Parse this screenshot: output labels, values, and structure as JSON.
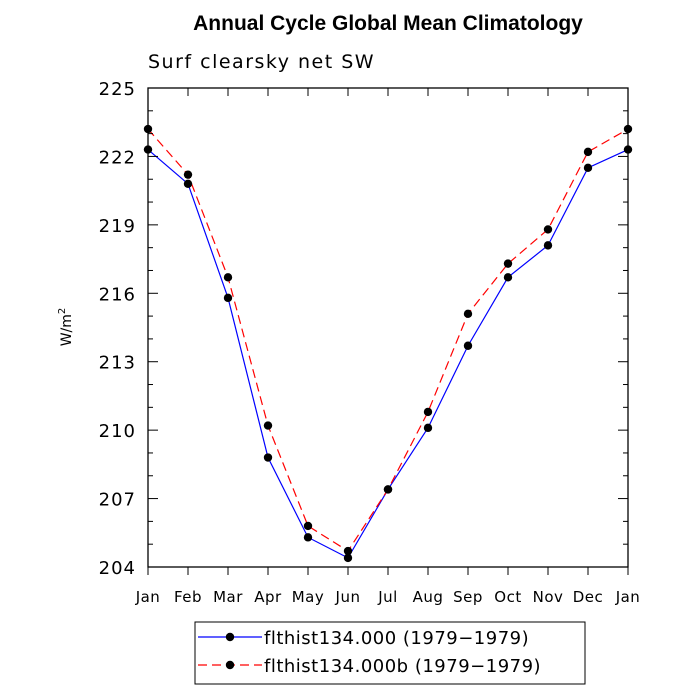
{
  "chart_data": {
    "type": "line",
    "title": "Annual Cycle Global Mean Climatology",
    "subtitle": "Surf clearsky net SW",
    "ylabel": "W/m",
    "ylabel_superscript": "2",
    "categories": [
      "Jan",
      "Feb",
      "Mar",
      "Apr",
      "May",
      "Jun",
      "Jul",
      "Aug",
      "Sep",
      "Oct",
      "Nov",
      "Dec",
      "Jan"
    ],
    "ylim": [
      204,
      225
    ],
    "yticks": [
      "204",
      "207",
      "210",
      "213",
      "216",
      "219",
      "222",
      "225"
    ],
    "series": [
      {
        "name": "flthist134.000 (1979−1979)",
        "color": "#0000ff",
        "dash": "solid",
        "values": [
          222.3,
          220.8,
          215.8,
          208.8,
          205.3,
          204.4,
          207.4,
          210.1,
          213.7,
          216.7,
          218.1,
          221.5,
          222.3
        ]
      },
      {
        "name": "flthist134.000b (1979−1979)",
        "color": "#ff0000",
        "dash": "dashed",
        "values": [
          223.2,
          221.2,
          216.7,
          210.2,
          205.8,
          204.7,
          207.4,
          210.8,
          215.1,
          217.3,
          218.8,
          222.2,
          223.2
        ]
      }
    ]
  }
}
